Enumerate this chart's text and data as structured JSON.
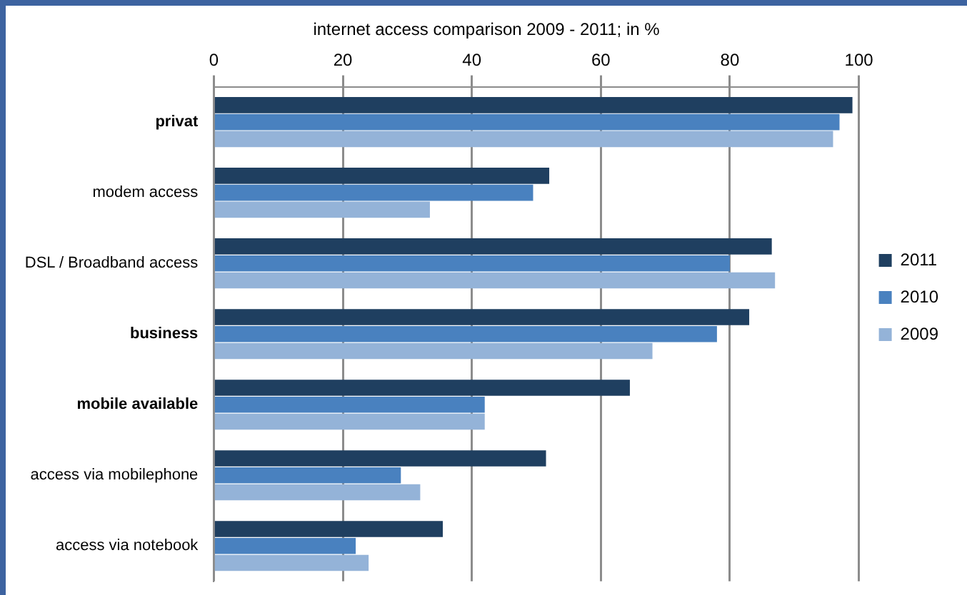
{
  "chart_data": {
    "type": "bar",
    "orientation": "horizontal",
    "title": "internet access comparison 2009 - 2011; in %",
    "categories": [
      "privat",
      "modem access",
      "DSL / Broadband access",
      "business",
      "mobile available",
      "access via mobilephone",
      "access via notebook"
    ],
    "series": [
      {
        "name": "2011",
        "color": "#1f3f60",
        "values": [
          99,
          52,
          86.5,
          83,
          64.5,
          51.5,
          35.5
        ]
      },
      {
        "name": "2010",
        "color": "#4981bf",
        "values": [
          97,
          49.5,
          80,
          78,
          42,
          29,
          22
        ]
      },
      {
        "name": "2009",
        "color": "#94b3d8",
        "values": [
          96,
          33.5,
          87,
          68,
          42,
          32,
          24
        ]
      }
    ],
    "xlim": [
      0,
      100
    ],
    "xticks": [
      0,
      20,
      40,
      60,
      80,
      100
    ],
    "grid": "x",
    "legend": "right"
  }
}
